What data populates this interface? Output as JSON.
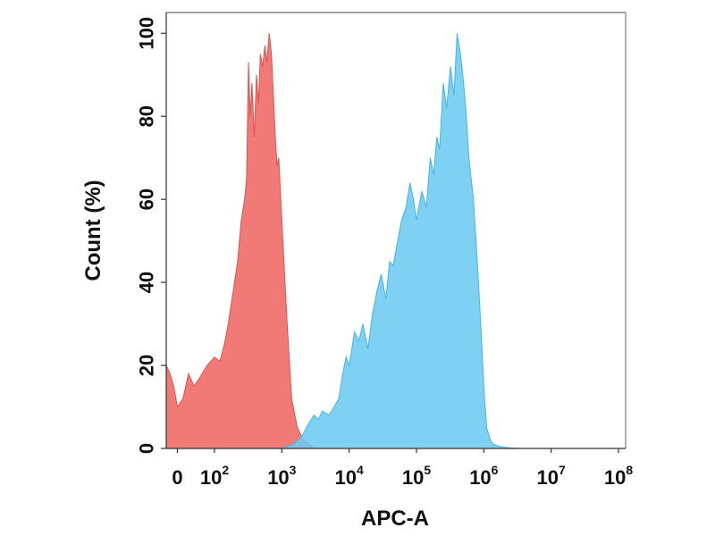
{
  "chart_data": {
    "type": "area",
    "title": "",
    "xlabel": "APC-A",
    "ylabel": "Count  (%)",
    "x_scale": "biexponential",
    "xlim": [
      -30,
      100000000
    ],
    "ylim": [
      0,
      105
    ],
    "grid": false,
    "legend": "none",
    "x_ticks": [
      {
        "value": 0,
        "base": "0",
        "exp": ""
      },
      {
        "value": 100,
        "base": "10",
        "exp": "2"
      },
      {
        "value": 1000,
        "base": "10",
        "exp": "3"
      },
      {
        "value": 10000,
        "base": "10",
        "exp": "4"
      },
      {
        "value": 100000,
        "base": "10",
        "exp": "5"
      },
      {
        "value": 1000000,
        "base": "10",
        "exp": "6"
      },
      {
        "value": 10000000,
        "base": "10",
        "exp": "7"
      },
      {
        "value": 100000000,
        "base": "10",
        "exp": "8"
      }
    ],
    "y_ticks": [
      0,
      20,
      40,
      60,
      80,
      100
    ],
    "series": [
      {
        "color": "#f07370",
        "stroke": "#d95450",
        "x": [
          -30,
          -20,
          -10,
          0,
          15,
          30,
          45,
          60,
          80,
          100,
          120,
          140,
          160,
          190,
          220,
          250,
          280,
          300,
          320,
          340,
          360,
          390,
          420,
          450,
          480,
          520,
          560,
          600,
          650,
          700,
          750,
          800,
          850,
          900,
          1000,
          1200,
          1400,
          1700,
          2100,
          2600,
          3000
        ],
        "y": [
          20,
          18,
          15,
          10,
          12,
          18,
          15,
          17,
          20,
          22,
          21,
          25,
          30,
          38,
          45,
          55,
          60,
          65,
          93,
          80,
          88,
          75,
          90,
          83,
          95,
          92,
          97,
          93,
          100,
          95,
          85,
          75,
          68,
          70,
          55,
          30,
          12,
          5,
          2,
          1,
          0
        ]
      },
      {
        "color": "#6ccbf0",
        "stroke": "#46b4e0",
        "x": [
          -30,
          0,
          100,
          1000,
          1500,
          2000,
          2500,
          3000,
          3500,
          4000,
          5000,
          6000,
          7000,
          8000,
          9000,
          10000,
          12000,
          14000,
          16000,
          19000,
          22000,
          26000,
          30000,
          35000,
          40000,
          45000,
          50000,
          60000,
          70000,
          80000,
          90000,
          100000,
          120000,
          140000,
          160000,
          180000,
          200000,
          220000,
          250000,
          280000,
          320000,
          360000,
          400000,
          450000,
          500000,
          550000,
          600000,
          700000,
          800000,
          900000,
          1000000,
          1100000,
          1250000,
          1400000,
          1700000,
          2000000,
          2300000,
          2700000,
          3500000,
          100000000
        ],
        "y": [
          0,
          0,
          0,
          0,
          1,
          3,
          6,
          8,
          7,
          9,
          8,
          10,
          12,
          18,
          22,
          20,
          28,
          26,
          30,
          24,
          32,
          38,
          42,
          36,
          45,
          44,
          48,
          55,
          58,
          64,
          60,
          55,
          62,
          58,
          70,
          66,
          75,
          72,
          88,
          82,
          92,
          85,
          100,
          95,
          88,
          80,
          70,
          60,
          45,
          30,
          15,
          5,
          2,
          1,
          0.5,
          0.3,
          0.2,
          0.1,
          0,
          0
        ]
      }
    ]
  }
}
